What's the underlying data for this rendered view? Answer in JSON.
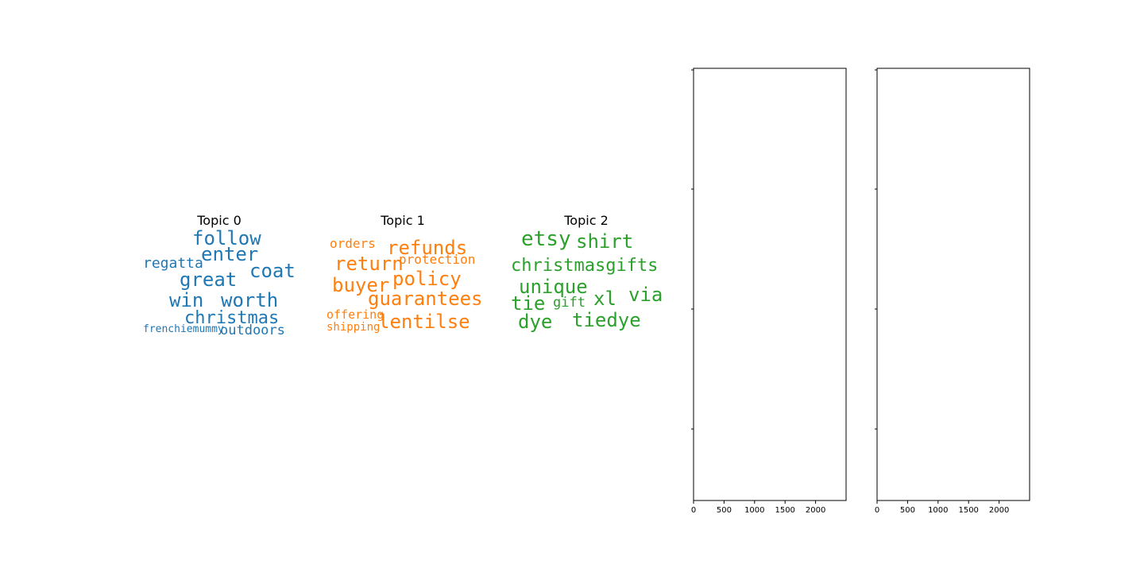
{
  "figure": {
    "background": "#ffffff"
  },
  "chart_data": [
    {
      "type": "wordcloud",
      "title": "Topic 0",
      "color": "#1f77b4",
      "words": [
        {
          "text": "follow",
          "weight": 0.9
        },
        {
          "text": "enter",
          "weight": 0.9
        },
        {
          "text": "coat",
          "weight": 0.9
        },
        {
          "text": "regatta",
          "weight": 0.7
        },
        {
          "text": "great",
          "weight": 0.9
        },
        {
          "text": "win",
          "weight": 0.9
        },
        {
          "text": "worth",
          "weight": 0.9
        },
        {
          "text": "christmas",
          "weight": 0.85
        },
        {
          "text": "frenchiemummy",
          "weight": 0.55
        },
        {
          "text": "outdoors",
          "weight": 0.7
        }
      ]
    },
    {
      "type": "wordcloud",
      "title": "Topic 1",
      "color": "#ff7f0e",
      "words": [
        {
          "text": "orders",
          "weight": 0.65
        },
        {
          "text": "refunds",
          "weight": 0.9
        },
        {
          "text": "protection",
          "weight": 0.65
        },
        {
          "text": "return",
          "weight": 0.9
        },
        {
          "text": "buyer",
          "weight": 0.9
        },
        {
          "text": "policy",
          "weight": 0.9
        },
        {
          "text": "guarantees",
          "weight": 0.9
        },
        {
          "text": "offering",
          "weight": 0.6
        },
        {
          "text": "shipping",
          "weight": 0.55
        },
        {
          "text": "lentilse",
          "weight": 0.9
        }
      ]
    },
    {
      "type": "wordcloud",
      "title": "Topic 2",
      "color": "#2ca02c",
      "words": [
        {
          "text": "etsy",
          "weight": 0.9
        },
        {
          "text": "shirt",
          "weight": 0.9
        },
        {
          "text": "christmasgifts",
          "weight": 0.85
        },
        {
          "text": "unique",
          "weight": 0.9
        },
        {
          "text": "tie",
          "weight": 0.9
        },
        {
          "text": "gift",
          "weight": 0.65
        },
        {
          "text": "xl",
          "weight": 0.9
        },
        {
          "text": "via",
          "weight": 0.9
        },
        {
          "text": "dye",
          "weight": 0.9
        },
        {
          "text": "tiedye",
          "weight": 0.9
        }
      ]
    },
    {
      "type": "empty",
      "xlim": [
        0,
        2500
      ],
      "xticks": [
        "0",
        "500",
        "1000",
        "1500",
        "2000"
      ]
    },
    {
      "type": "empty",
      "xlim": [
        0,
        2500
      ],
      "xticks": [
        "0",
        "500",
        "1000",
        "1500",
        "2000"
      ]
    }
  ]
}
